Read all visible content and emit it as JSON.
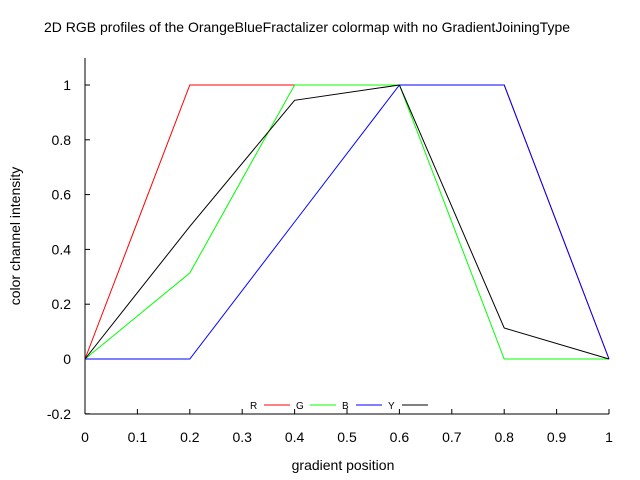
{
  "chart_data": {
    "type": "line",
    "title": "2D RGB profiles of the OrangeBlueFractalizer colormap with no GradientJoiningType",
    "xlabel": "gradient position",
    "ylabel": "color channel intensity",
    "xlim": [
      0,
      1
    ],
    "ylim": [
      -0.2,
      1.1
    ],
    "xticks": [
      "0",
      "0.1",
      "0.2",
      "0.3",
      "0.4",
      "0.5",
      "0.6",
      "0.7",
      "0.8",
      "0.9",
      "1"
    ],
    "yticks": [
      "-0.2",
      "0",
      "0.2",
      "0.4",
      "0.6",
      "0.8",
      "1"
    ],
    "grid": false,
    "legend_position": "bottom-center",
    "series": [
      {
        "name": "R",
        "color": "#ff0000",
        "x": [
          0,
          0.2,
          0.4,
          0.6,
          0.8,
          1
        ],
        "values": [
          0,
          1,
          1,
          1,
          1,
          0
        ]
      },
      {
        "name": "G",
        "color": "#00ff00",
        "x": [
          0,
          0.2,
          0.4,
          0.6,
          0.8,
          1
        ],
        "values": [
          0,
          0.314,
          1,
          1,
          0,
          0
        ]
      },
      {
        "name": "B",
        "color": "#0000ff",
        "x": [
          0,
          0.2,
          0.4,
          0.6,
          0.8,
          1
        ],
        "values": [
          0,
          0,
          0.5,
          1,
          1,
          0
        ]
      },
      {
        "name": "Y",
        "color": "#000000",
        "x": [
          0,
          0.2,
          0.4,
          0.6,
          0.8,
          1
        ],
        "values": [
          0,
          0.484,
          0.944,
          1,
          0.113,
          0
        ]
      }
    ]
  }
}
